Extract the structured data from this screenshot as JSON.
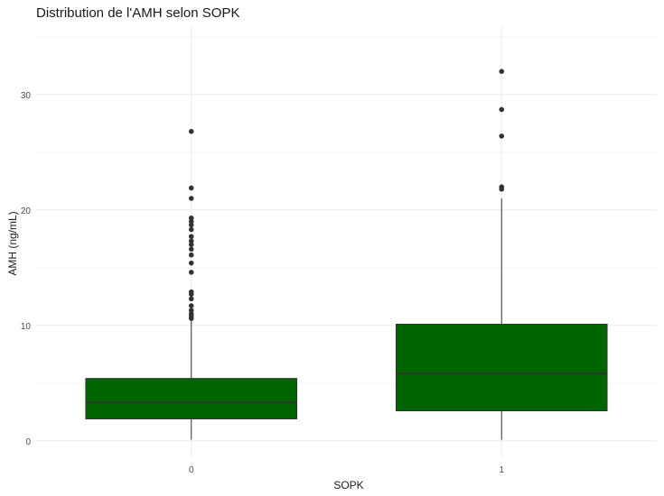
{
  "chart_data": {
    "type": "boxplot",
    "title": "Distribution de l'AMH selon SOPK",
    "xlabel": "SOPK",
    "ylabel": "AMH (ng/mL)",
    "categories": [
      "0",
      "1"
    ],
    "y_ticks": [
      0,
      10,
      20,
      30
    ],
    "ylim": [
      -1.5,
      36
    ],
    "grid": true,
    "fill_color": "#006400",
    "boxes": [
      {
        "category": "0",
        "min": 0.1,
        "q1": 1.9,
        "median": 3.3,
        "q3": 5.4,
        "max": 10.5,
        "outliers": [
          10.6,
          10.8,
          11.0,
          11.3,
          11.7,
          12.3,
          12.7,
          12.9,
          14.6,
          15.4,
          16.1,
          16.6,
          17.0,
          17.3,
          17.7,
          18.3,
          18.7,
          19.0,
          19.3,
          21.0,
          21.9,
          26.8
        ]
      },
      {
        "category": "1",
        "min": 0.1,
        "q1": 2.6,
        "median": 5.8,
        "q3": 10.1,
        "max": 21.0,
        "outliers": [
          21.8,
          22.0,
          26.4,
          28.7,
          32.0
        ]
      }
    ]
  }
}
